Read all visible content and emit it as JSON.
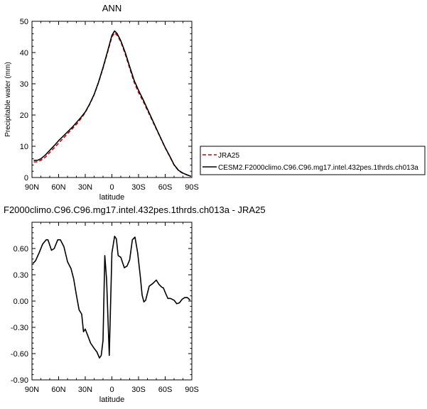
{
  "chart_data": [
    {
      "type": "line",
      "title": "ANN",
      "xlabel": "latitude",
      "ylabel": "Precipitable water (mm)",
      "xlim": [
        90,
        -90
      ],
      "ylim": [
        0,
        50
      ],
      "x_ticks": [
        90,
        60,
        30,
        0,
        -30,
        -60,
        -90
      ],
      "x_tick_labels": [
        "90N",
        "60N",
        "30N",
        "0",
        "30S",
        "60S",
        "90S"
      ],
      "y_ticks": [
        0,
        10,
        20,
        30,
        40,
        50
      ],
      "y_tick_labels": [
        "0",
        "10",
        "20",
        "30",
        "40",
        "50"
      ],
      "legend_placement": "right",
      "series": [
        {
          "name": "JRA25",
          "color": "#cc0000",
          "dash": "dashed",
          "points": [
            [
              88,
              5.0
            ],
            [
              84,
              5.0
            ],
            [
              80,
              5.5
            ],
            [
              75,
              6.5
            ],
            [
              70,
              8.0
            ],
            [
              65,
              9.5
            ],
            [
              60,
              11.0
            ],
            [
              55,
              12.5
            ],
            [
              50,
              14.0
            ],
            [
              45,
              15.5
            ],
            [
              40,
              17.0
            ],
            [
              35,
              18.8
            ],
            [
              30,
              20.8
            ],
            [
              25,
              23.5
            ],
            [
              20,
              26.5
            ],
            [
              15,
              30.5
            ],
            [
              10,
              35.0
            ],
            [
              5,
              40.0
            ],
            [
              0,
              45.0
            ],
            [
              -3,
              46.3
            ],
            [
              -6,
              45.5
            ],
            [
              -10,
              43.5
            ],
            [
              -15,
              39.5
            ],
            [
              -20,
              35.0
            ],
            [
              -25,
              30.5
            ],
            [
              -30,
              27.2
            ],
            [
              -35,
              24.5
            ],
            [
              -40,
              21.5
            ],
            [
              -45,
              18.5
            ],
            [
              -50,
              15.5
            ],
            [
              -55,
              12.5
            ],
            [
              -60,
              9.5
            ],
            [
              -65,
              6.8
            ],
            [
              -70,
              4.0
            ],
            [
              -75,
              2.2
            ],
            [
              -80,
              1.3
            ],
            [
              -85,
              0.8
            ],
            [
              -89,
              0.4
            ]
          ]
        },
        {
          "name": "CESM2.F2000climo.C96.C96.mg17.intel.432pes.1thrds.ch013a",
          "color": "#000000",
          "dash": "solid",
          "points": [
            [
              88,
              5.5
            ],
            [
              84,
              5.5
            ],
            [
              80,
              6.0
            ],
            [
              75,
              7.2
            ],
            [
              70,
              8.7
            ],
            [
              65,
              10.2
            ],
            [
              60,
              11.8
            ],
            [
              55,
              13.2
            ],
            [
              50,
              14.6
            ],
            [
              45,
              16.0
            ],
            [
              40,
              17.6
            ],
            [
              35,
              19.2
            ],
            [
              30,
              21.0
            ],
            [
              25,
              23.6
            ],
            [
              20,
              26.6
            ],
            [
              15,
              30.6
            ],
            [
              10,
              35.2
            ],
            [
              5,
              40.3
            ],
            [
              0,
              45.5
            ],
            [
              -3,
              46.9
            ],
            [
              -6,
              46.0
            ],
            [
              -10,
              43.8
            ],
            [
              -15,
              40.0
            ],
            [
              -20,
              35.5
            ],
            [
              -25,
              31.1
            ],
            [
              -30,
              27.9
            ],
            [
              -35,
              25.0
            ],
            [
              -40,
              21.9
            ],
            [
              -45,
              18.8
            ],
            [
              -50,
              15.7
            ],
            [
              -55,
              12.6
            ],
            [
              -60,
              9.6
            ],
            [
              -65,
              6.9
            ],
            [
              -70,
              4.1
            ],
            [
              -75,
              2.3
            ],
            [
              -80,
              1.4
            ],
            [
              -85,
              0.8
            ],
            [
              -89,
              0.4
            ]
          ]
        }
      ]
    },
    {
      "type": "line",
      "title": "F2000climo.C96.C96.mg17.intel.432pes.1thrds.ch013a - JRA25",
      "xlabel": "latitude",
      "ylabel": "Precipitable water (mm)",
      "xlim": [
        90,
        -90
      ],
      "ylim": [
        -0.9,
        0.9
      ],
      "x_ticks": [
        90,
        60,
        30,
        0,
        -30,
        -60,
        -90
      ],
      "x_tick_labels": [
        "90N",
        "60N",
        "30N",
        "0",
        "30S",
        "60S",
        "90S"
      ],
      "y_ticks": [
        -0.9,
        -0.6,
        -0.3,
        0.0,
        0.3,
        0.6
      ],
      "y_tick_labels": [
        "-0.90",
        "-0.60",
        "-0.30",
        "0.00",
        "0.30",
        "0.60"
      ],
      "series": [
        {
          "color": "#000000",
          "dash": "solid",
          "points": [
            [
              89,
              0.43
            ],
            [
              86,
              0.46
            ],
            [
              82,
              0.55
            ],
            [
              78,
              0.65
            ],
            [
              74,
              0.7
            ],
            [
              72,
              0.7
            ],
            [
              68,
              0.58
            ],
            [
              65,
              0.6
            ],
            [
              61,
              0.7
            ],
            [
              58,
              0.7
            ],
            [
              54,
              0.62
            ],
            [
              50,
              0.45
            ],
            [
              46,
              0.37
            ],
            [
              43,
              0.25
            ],
            [
              40,
              0.07
            ],
            [
              37,
              -0.1
            ],
            [
              34,
              -0.15
            ],
            [
              32,
              -0.35
            ],
            [
              30,
              -0.32
            ],
            [
              27,
              -0.4
            ],
            [
              24,
              -0.48
            ],
            [
              20,
              -0.54
            ],
            [
              17,
              -0.58
            ],
            [
              14,
              -0.65
            ],
            [
              12,
              -0.62
            ],
            [
              10,
              -0.45
            ],
            [
              8,
              0.52
            ],
            [
              6,
              0.25
            ],
            [
              3,
              -0.62
            ],
            [
              0,
              0.55
            ],
            [
              -3,
              0.74
            ],
            [
              -5,
              0.71
            ],
            [
              -7,
              0.52
            ],
            [
              -10,
              0.5
            ],
            [
              -14,
              0.38
            ],
            [
              -17,
              0.4
            ],
            [
              -20,
              0.47
            ],
            [
              -23,
              0.7
            ],
            [
              -26,
              0.73
            ],
            [
              -29,
              0.55
            ],
            [
              -32,
              0.28
            ],
            [
              -34,
              0.07
            ],
            [
              -36,
              -0.01
            ],
            [
              -38,
              0.01
            ],
            [
              -42,
              0.17
            ],
            [
              -46,
              0.2
            ],
            [
              -50,
              0.24
            ],
            [
              -53,
              0.19
            ],
            [
              -56,
              0.16
            ],
            [
              -58,
              0.15
            ],
            [
              -60,
              0.1
            ],
            [
              -63,
              0.03
            ],
            [
              -66,
              0.03
            ],
            [
              -70,
              0.01
            ],
            [
              -73,
              -0.03
            ],
            [
              -76,
              -0.02
            ],
            [
              -79,
              0.02
            ],
            [
              -82,
              0.04
            ],
            [
              -85,
              0.04
            ],
            [
              -88,
              0.01
            ]
          ]
        }
      ]
    }
  ]
}
